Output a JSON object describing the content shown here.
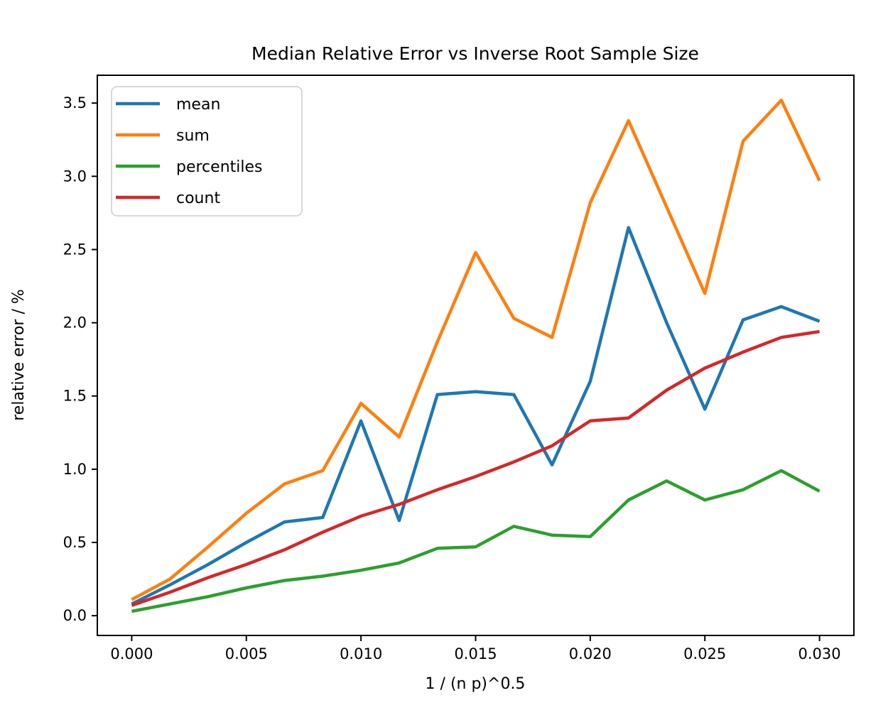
{
  "figure": {
    "background": "#ffffff",
    "text_color": "#000000",
    "spine_color": "#000000",
    "legend_border_color": "#cccccc",
    "legend_background": "#ffffff"
  },
  "chart_data": {
    "type": "line",
    "title": "Median Relative Error vs Inverse Root Sample Size",
    "xlabel": "1 / (n p)^0.5",
    "ylabel": "relative error / %",
    "grid": false,
    "x": [
      0.0,
      0.001667,
      0.003333,
      0.005,
      0.006667,
      0.008333,
      0.01,
      0.011667,
      0.013333,
      0.015,
      0.016667,
      0.018333,
      0.02,
      0.021667,
      0.023333,
      0.025,
      0.026667,
      0.028333,
      0.03
    ],
    "series": [
      {
        "name": "mean",
        "color": "#1f77b4",
        "values": [
          0.08,
          0.21,
          0.35,
          0.5,
          0.64,
          0.67,
          1.33,
          0.65,
          1.51,
          1.53,
          1.51,
          1.03,
          1.6,
          2.65,
          2.0,
          1.41,
          2.02,
          2.11,
          2.01
        ]
      },
      {
        "name": "sum",
        "color": "#ff7f0e",
        "values": [
          0.11,
          0.25,
          0.47,
          0.7,
          0.9,
          0.99,
          1.45,
          1.22,
          1.87,
          2.48,
          2.03,
          1.9,
          2.82,
          3.38,
          2.79,
          2.2,
          3.24,
          3.52,
          2.97
        ]
      },
      {
        "name": "percentiles",
        "color": "#2ca02c",
        "values": [
          0.03,
          0.08,
          0.13,
          0.19,
          0.24,
          0.27,
          0.31,
          0.36,
          0.46,
          0.47,
          0.61,
          0.55,
          0.54,
          0.79,
          0.92,
          0.79,
          0.86,
          0.99,
          0.85
        ]
      },
      {
        "name": "count",
        "color": "#d62728",
        "values": [
          0.07,
          0.16,
          0.26,
          0.35,
          0.45,
          0.57,
          0.68,
          0.76,
          0.86,
          0.95,
          1.05,
          1.16,
          1.33,
          1.35,
          1.54,
          1.69,
          1.8,
          1.9,
          1.94
        ]
      }
    ],
    "x_ticks": {
      "values": [
        0.0,
        0.005,
        0.01,
        0.015,
        0.02,
        0.025,
        0.03
      ],
      "labels": [
        "0.000",
        "0.005",
        "0.010",
        "0.015",
        "0.020",
        "0.025",
        "0.030"
      ]
    },
    "y_ticks": {
      "values": [
        0.0,
        0.5,
        1.0,
        1.5,
        2.0,
        2.5,
        3.0,
        3.5
      ],
      "labels": [
        "0.0",
        "0.5",
        "1.0",
        "1.5",
        "2.0",
        "2.5",
        "3.0",
        "3.5"
      ]
    },
    "xlim": [
      -0.0015,
      0.0315
    ],
    "ylim": [
      -0.135,
      3.69
    ],
    "legend": {
      "position": "upper left",
      "entries": [
        "mean",
        "sum",
        "percentiles",
        "count"
      ]
    }
  }
}
